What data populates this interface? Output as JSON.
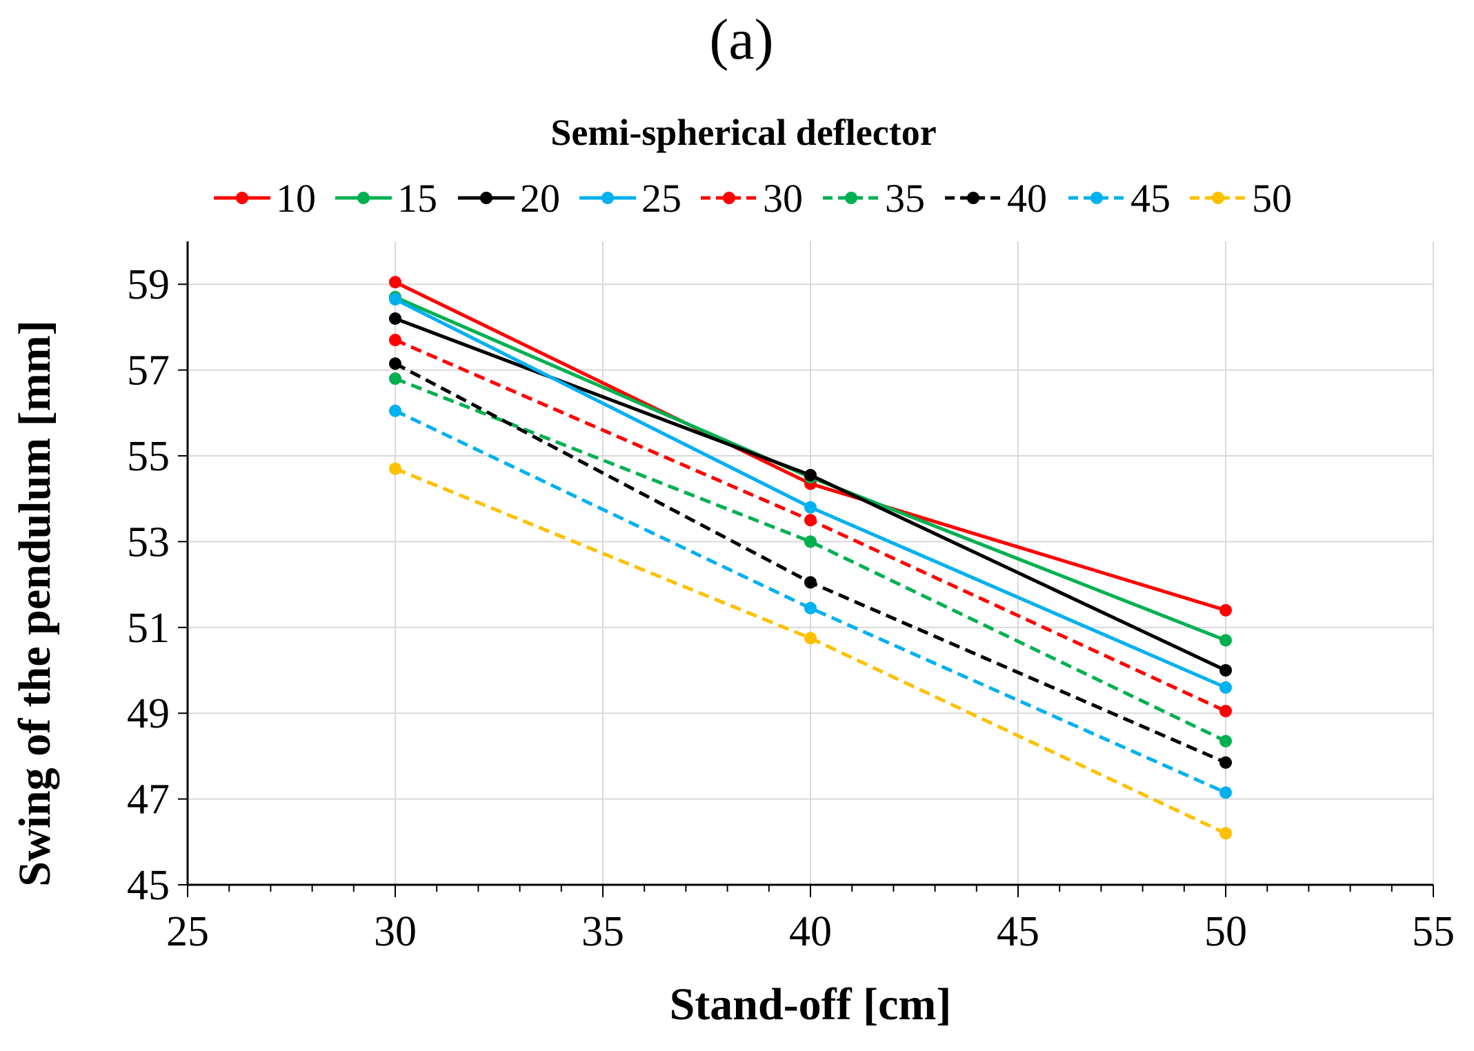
{
  "panel_label": "(a)",
  "chart_data": {
    "type": "line",
    "title": "Semi-spherical deflector",
    "xlabel": "Stand-off [cm]",
    "ylabel": "Swing of the pendulum [mm]",
    "xlim": [
      25,
      55
    ],
    "ylim": [
      45,
      60
    ],
    "x_ticks": [
      25,
      30,
      35,
      40,
      45,
      50,
      55
    ],
    "y_ticks": [
      45,
      47,
      49,
      51,
      53,
      55,
      57,
      59
    ],
    "grid": true,
    "legend_position": "top",
    "x": [
      30,
      40,
      50
    ],
    "series": [
      {
        "name": "10",
        "color": "#ff0000",
        "dashed": false,
        "values": [
          59.05,
          54.35,
          51.4
        ]
      },
      {
        "name": "15",
        "color": "#00b050",
        "dashed": false,
        "values": [
          58.7,
          54.5,
          50.7
        ]
      },
      {
        "name": "20",
        "color": "#000000",
        "dashed": false,
        "values": [
          58.2,
          54.55,
          50.0
        ]
      },
      {
        "name": "25",
        "color": "#00b0f0",
        "dashed": false,
        "values": [
          58.65,
          53.8,
          49.6
        ]
      },
      {
        "name": "30",
        "color": "#ff0000",
        "dashed": true,
        "values": [
          57.7,
          53.5,
          49.05
        ]
      },
      {
        "name": "35",
        "color": "#00b050",
        "dashed": true,
        "values": [
          56.8,
          53.0,
          48.35
        ]
      },
      {
        "name": "40",
        "color": "#000000",
        "dashed": true,
        "values": [
          57.15,
          52.05,
          47.85
        ]
      },
      {
        "name": "45",
        "color": "#00b0f0",
        "dashed": true,
        "values": [
          56.05,
          51.45,
          47.15
        ]
      },
      {
        "name": "50",
        "color": "#ffc000",
        "dashed": true,
        "values": [
          54.7,
          50.75,
          46.2
        ]
      }
    ]
  }
}
